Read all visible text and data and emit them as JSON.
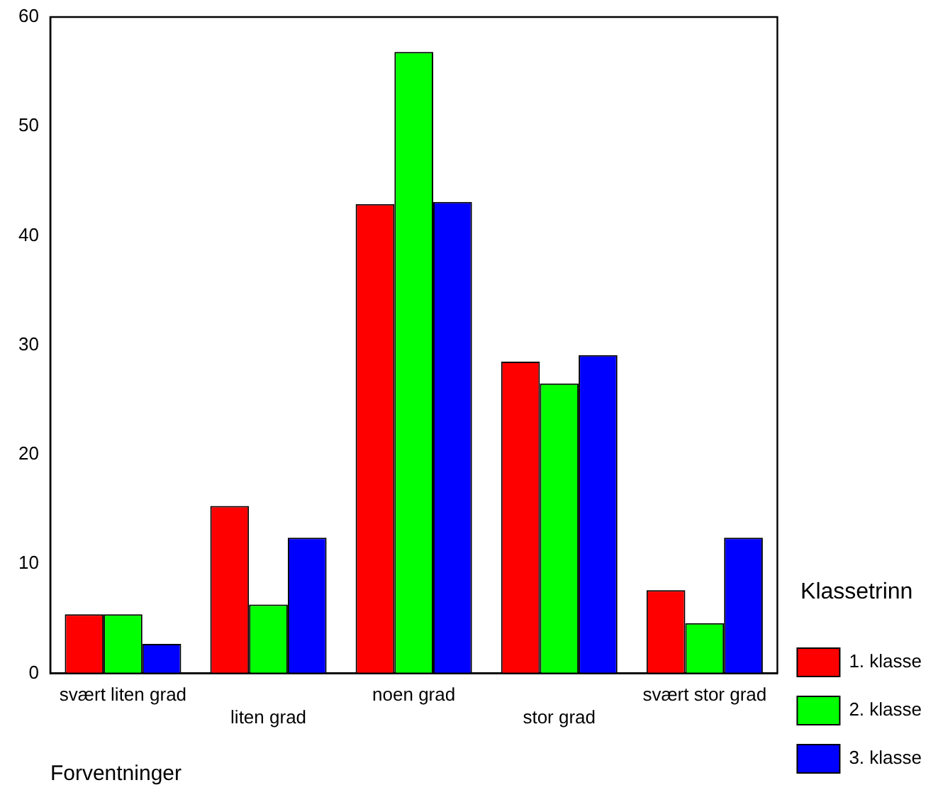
{
  "chart_data": {
    "type": "bar",
    "xlabel": "Forventninger",
    "legend_title": "Klassetrinn",
    "legend": "right",
    "grid": false,
    "categories": [
      "svært liten grad",
      "liten grad",
      "noen grad",
      "stor grad",
      "svært stor grad"
    ],
    "series": [
      {
        "name": "1. klasse",
        "color": "#ff0000",
        "values": [
          5.4,
          15.3,
          42.9,
          28.5,
          7.6
        ]
      },
      {
        "name": "2. klasse",
        "color": "#00ff00",
        "values": [
          5.4,
          6.3,
          56.8,
          26.5,
          4.6
        ]
      },
      {
        "name": "3. klasse",
        "color": "#0000ff",
        "values": [
          2.7,
          12.4,
          43.1,
          29.1,
          12.4
        ]
      }
    ],
    "ylim": [
      0,
      60
    ],
    "yticks": [
      0,
      10,
      20,
      30,
      40,
      50,
      60
    ]
  }
}
